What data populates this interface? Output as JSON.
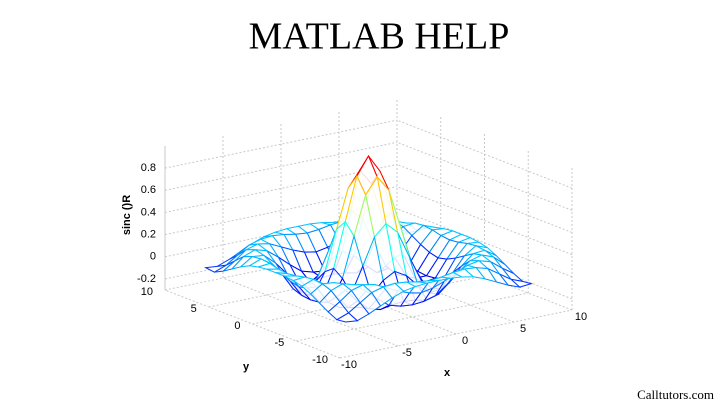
{
  "title": "MATLAB HELP",
  "watermark": "Calltutors.com",
  "chart_data": {
    "type": "mesh",
    "colormap": "jet",
    "xlabel": "x",
    "ylabel": "y",
    "zlabel": "sinc ()R",
    "xlim": [
      -10,
      10
    ],
    "ylim": [
      -10,
      10
    ],
    "zlim": [
      -0.3,
      1
    ],
    "xticks": [
      -10,
      -5,
      0,
      5,
      10
    ],
    "yticks": [
      -10,
      -5,
      0,
      5,
      10
    ],
    "zticks": [
      -0.2,
      0,
      0.2,
      0.4,
      0.6,
      0.8
    ],
    "grid": true,
    "x": [
      -8,
      -7,
      -6,
      -5,
      -4,
      -3,
      -2,
      -1,
      0,
      1,
      2,
      3,
      4,
      5,
      6,
      7,
      8
    ],
    "y": [
      -8,
      -7,
      -6,
      -5,
      -4,
      -3,
      -2,
      -1,
      0,
      1,
      2,
      3,
      4,
      5,
      6,
      7,
      8
    ],
    "z": [
      [
        -0.08,
        -0.09,
        -0.05,
        0,
        0.05,
        0.09,
        0.11,
        0.12,
        0.12,
        0.12,
        0.11,
        0.09,
        0.05,
        0,
        -0.05,
        -0.09,
        -0.08
      ],
      [
        -0.09,
        -0.05,
        0.02,
        0.09,
        0.12,
        0.13,
        0.12,
        0.1,
        0.09,
        0.1,
        0.12,
        0.13,
        0.12,
        0.09,
        0.02,
        -0.05,
        -0.09
      ],
      [
        -0.05,
        0.02,
        0.1,
        0.13,
        0.11,
        0.06,
        0.01,
        -0.03,
        -0.05,
        -0.03,
        0.01,
        0.06,
        0.11,
        0.13,
        0.1,
        0.02,
        -0.05
      ],
      [
        0,
        0.09,
        0.13,
        0.1,
        0.02,
        -0.07,
        -0.15,
        -0.18,
        -0.19,
        -0.18,
        -0.15,
        -0.07,
        0.02,
        0.1,
        0.13,
        0.09,
        0
      ],
      [
        0.05,
        0.12,
        0.11,
        0.02,
        -0.1,
        -0.19,
        -0.22,
        -0.2,
        -0.19,
        -0.2,
        -0.22,
        -0.19,
        -0.1,
        0.02,
        0.11,
        0.12,
        0.05
      ],
      [
        0.09,
        0.13,
        0.06,
        -0.07,
        -0.19,
        -0.21,
        -0.12,
        -0.01,
        0.05,
        -0.01,
        -0.12,
        -0.21,
        -0.19,
        -0.07,
        0.06,
        0.13,
        0.09
      ],
      [
        0.11,
        0.12,
        0.01,
        -0.15,
        -0.22,
        -0.12,
        0.11,
        0.35,
        0.45,
        0.35,
        0.11,
        -0.12,
        -0.22,
        -0.15,
        0.01,
        0.12,
        0.11
      ],
      [
        0.12,
        0.1,
        -0.03,
        -0.18,
        -0.2,
        -0.01,
        0.35,
        0.7,
        0.84,
        0.7,
        0.35,
        -0.01,
        -0.2,
        -0.18,
        -0.03,
        0.1,
        0.12
      ],
      [
        0.12,
        0.09,
        -0.05,
        -0.19,
        -0.19,
        0.05,
        0.45,
        0.84,
        1,
        0.84,
        0.45,
        0.05,
        -0.19,
        -0.19,
        -0.05,
        0.09,
        0.12
      ],
      [
        0.12,
        0.1,
        -0.03,
        -0.18,
        -0.2,
        -0.01,
        0.35,
        0.7,
        0.84,
        0.7,
        0.35,
        -0.01,
        -0.2,
        -0.18,
        -0.03,
        0.1,
        0.12
      ],
      [
        0.11,
        0.12,
        0.01,
        -0.15,
        -0.22,
        -0.12,
        0.11,
        0.35,
        0.45,
        0.35,
        0.11,
        -0.12,
        -0.22,
        -0.15,
        0.01,
        0.12,
        0.11
      ],
      [
        0.09,
        0.13,
        0.06,
        -0.07,
        -0.19,
        -0.21,
        -0.12,
        -0.01,
        0.05,
        -0.01,
        -0.12,
        -0.21,
        -0.19,
        -0.07,
        0.06,
        0.13,
        0.09
      ],
      [
        0.05,
        0.12,
        0.11,
        0.02,
        -0.1,
        -0.19,
        -0.22,
        -0.2,
        -0.19,
        -0.2,
        -0.22,
        -0.19,
        -0.1,
        0.02,
        0.11,
        0.12,
        0.05
      ],
      [
        0,
        0.09,
        0.13,
        0.1,
        0.02,
        -0.07,
        -0.15,
        -0.18,
        -0.19,
        -0.18,
        -0.15,
        -0.07,
        0.02,
        0.1,
        0.13,
        0.09,
        0
      ],
      [
        -0.05,
        0.02,
        0.1,
        0.13,
        0.11,
        0.06,
        0.01,
        -0.03,
        -0.05,
        -0.03,
        0.01,
        0.06,
        0.11,
        0.13,
        0.1,
        0.02,
        -0.05
      ],
      [
        -0.09,
        -0.05,
        0.02,
        0.09,
        0.12,
        0.13,
        0.12,
        0.1,
        0.09,
        0.1,
        0.12,
        0.13,
        0.12,
        0.09,
        0.02,
        -0.05,
        -0.09
      ],
      [
        -0.08,
        -0.09,
        -0.05,
        0,
        0.05,
        0.09,
        0.11,
        0.12,
        0.12,
        0.12,
        0.11,
        0.09,
        0.05,
        0,
        -0.05,
        -0.09,
        -0.08
      ]
    ]
  }
}
